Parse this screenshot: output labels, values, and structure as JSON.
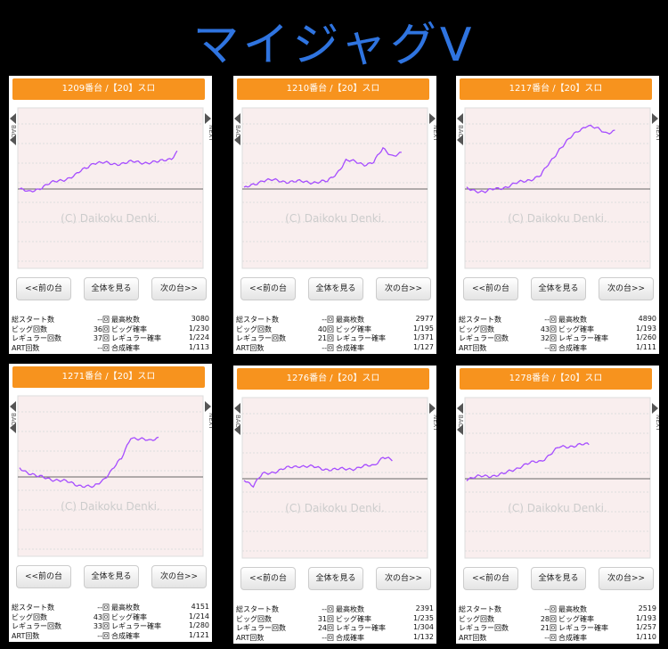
{
  "title": "マイジャグV",
  "buttons": [
    "<<前の台",
    "全体を見る",
    "次の台>>"
  ],
  "watermark": "(C) Daikoku Denki.",
  "side": [
    "BACK",
    "NEXT"
  ],
  "stat_labels": [
    [
      "総スタート数",
      "最高枚数"
    ],
    [
      "ビッグ回数",
      "ビッグ確率"
    ],
    [
      "レギュラー回数",
      "レギュラー確率"
    ],
    [
      "ART回数",
      "合成確率"
    ]
  ],
  "panels": [
    {
      "header": "1209番台 /【20】スロ",
      "stats": [
        [
          "--回",
          "3080"
        ],
        [
          "36回",
          "1/230"
        ],
        [
          "37回",
          "1/224"
        ],
        [
          "--回",
          "1/113"
        ]
      ]
    },
    {
      "header": "1210番台 /【20】スロ",
      "stats": [
        [
          "--回",
          "2977"
        ],
        [
          "40回",
          "1/195"
        ],
        [
          "21回",
          "1/371"
        ],
        [
          "--回",
          "1/127"
        ]
      ]
    },
    {
      "header": "1217番台 /【20】スロ",
      "stats": [
        [
          "--回",
          "4890"
        ],
        [
          "43回",
          "1/193"
        ],
        [
          "32回",
          "1/260"
        ],
        [
          "--回",
          "1/111"
        ]
      ]
    },
    {
      "header": "1271番台 /【20】スロ",
      "stats": [
        [
          "--回",
          "4151"
        ],
        [
          "43回",
          "1/214"
        ],
        [
          "33回",
          "1/280"
        ],
        [
          "--回",
          "1/121"
        ]
      ]
    },
    {
      "header": "1276番台 /【20】スロ",
      "stats": [
        [
          "--回",
          "2391"
        ],
        [
          "31回",
          "1/235"
        ],
        [
          "24回",
          "1/304"
        ],
        [
          "--回",
          "1/132"
        ]
      ]
    },
    {
      "header": "1278番台 /【20】スロ",
      "stats": [
        [
          "--回",
          "2519"
        ],
        [
          "28回",
          "1/193"
        ],
        [
          "21回",
          "1/257"
        ],
        [
          "--回",
          "1/110"
        ]
      ]
    }
  ]
}
